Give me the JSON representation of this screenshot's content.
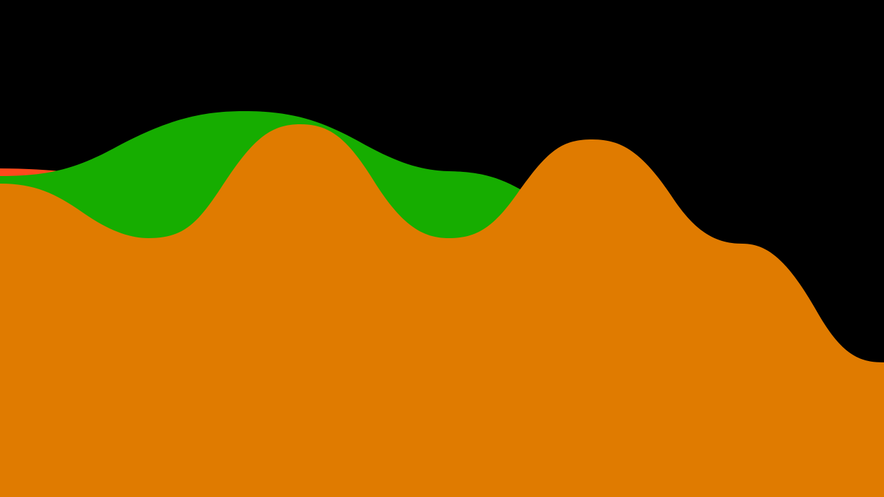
{
  "background_color": "#000000",
  "layers": [
    {
      "name": "red-wave-layer",
      "color": "#FF4A1C"
    },
    {
      "name": "green-wave-layer",
      "color": "#16AD00"
    },
    {
      "name": "orange-wave-layer",
      "color": "#E07B00"
    }
  ]
}
